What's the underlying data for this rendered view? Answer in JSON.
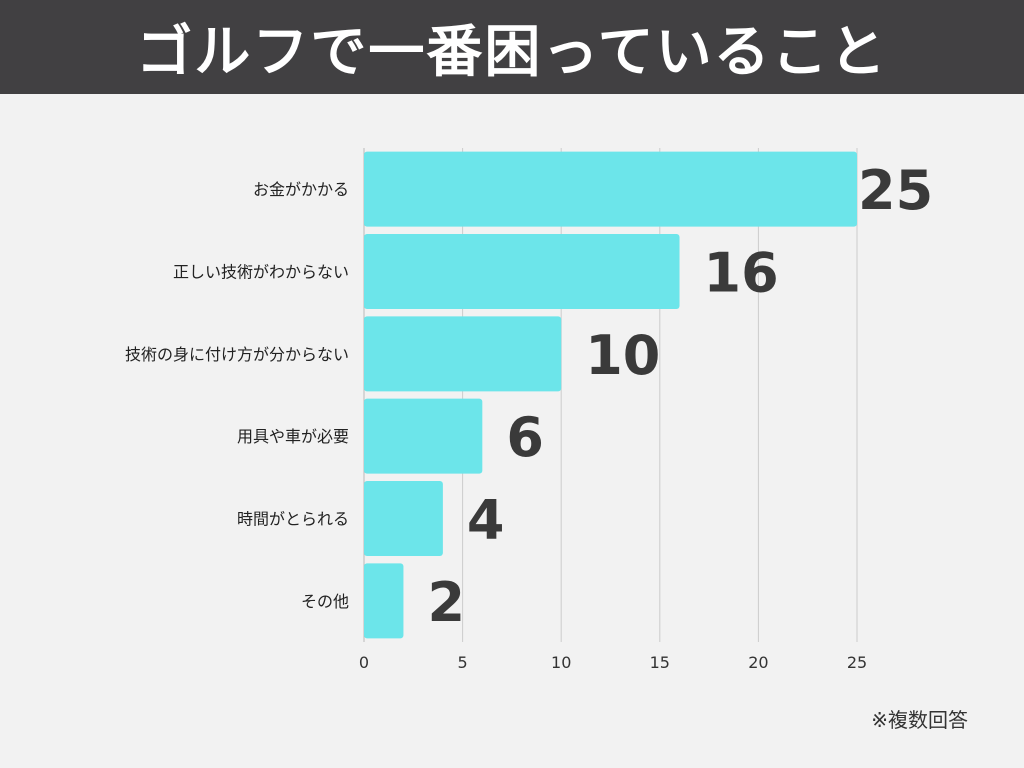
{
  "header": {
    "title": "ゴルフで一番困っていること"
  },
  "footnote": "※複数回答",
  "colors": {
    "bar": "#6ce5ea",
    "header_bg": "#414042",
    "value_text": "#3a3a3a",
    "grid": "#cccccc"
  },
  "chart_data": {
    "type": "bar",
    "orientation": "horizontal",
    "title": "ゴルフで一番困っていること",
    "categories": [
      "お金がかかる",
      "正しい技術がわからない",
      "技術の身に付け方が分からない",
      "用具や車が必要",
      "時間がとられる",
      "その他"
    ],
    "values": [
      25,
      16,
      10,
      6,
      4,
      2
    ],
    "xlim": [
      0,
      25
    ],
    "xticks": [
      0,
      5,
      10,
      15,
      20,
      25
    ],
    "grid": true,
    "note": "※複数回答"
  }
}
